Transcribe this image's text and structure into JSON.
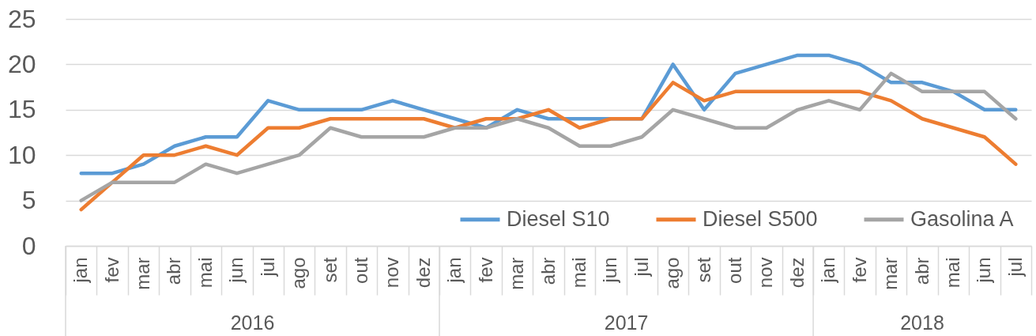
{
  "chart_data": {
    "type": "line",
    "categories": [
      "jan",
      "fev",
      "mar",
      "abr",
      "mai",
      "jun",
      "jul",
      "ago",
      "set",
      "out",
      "nov",
      "dez",
      "jan",
      "fev",
      "mar",
      "abr",
      "mai",
      "jun",
      "jul",
      "ago",
      "set",
      "out",
      "nov",
      "dez",
      "jan",
      "fev",
      "mar",
      "abr",
      "mai",
      "jun",
      "jul"
    ],
    "series": [
      {
        "name": "Diesel S10",
        "color": "#5b9bd5",
        "values": [
          8,
          8,
          9,
          11,
          12,
          12,
          16,
          15,
          15,
          15,
          16,
          15,
          14,
          13,
          15,
          14,
          14,
          14,
          14,
          20,
          15,
          19,
          20,
          21,
          21,
          20,
          18,
          18,
          17,
          15,
          15
        ]
      },
      {
        "name": "Diesel S500",
        "color": "#ed7d31",
        "values": [
          4,
          7,
          10,
          10,
          11,
          10,
          13,
          13,
          14,
          14,
          14,
          14,
          13,
          14,
          14,
          15,
          13,
          14,
          14,
          18,
          16,
          17,
          17,
          17,
          17,
          17,
          16,
          14,
          13,
          12,
          9
        ]
      },
      {
        "name": "Gasolina A",
        "color": "#a5a5a5",
        "values": [
          5,
          7,
          7,
          7,
          9,
          8,
          9,
          10,
          13,
          12,
          12,
          12,
          13,
          13,
          14,
          13,
          11,
          11,
          12,
          15,
          14,
          13,
          13,
          15,
          16,
          15,
          19,
          17,
          17,
          17,
          14
        ]
      }
    ],
    "ylim": [
      0,
      25
    ],
    "yticks": [
      0,
      5,
      10,
      15,
      20,
      25
    ],
    "annotations": [
      "2016",
      "2017",
      "2018"
    ],
    "grid": "y",
    "legend": "bottom right"
  }
}
